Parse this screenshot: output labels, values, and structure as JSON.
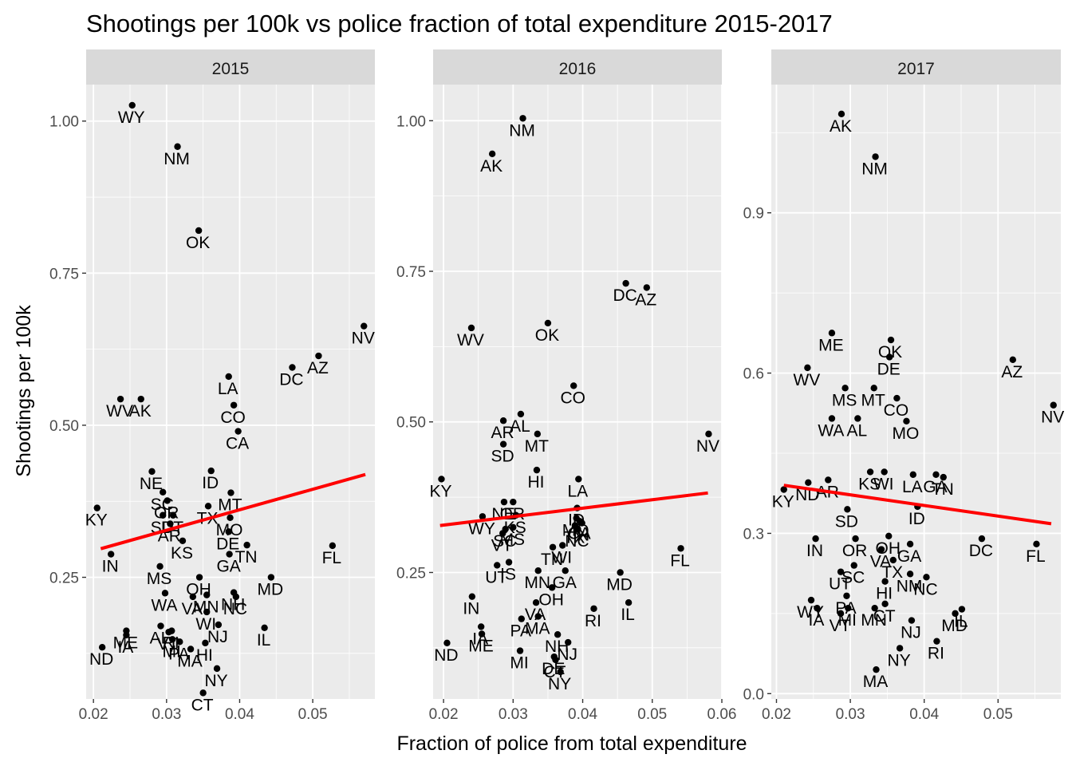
{
  "chart_data": {
    "type": "scatter",
    "title": "Shootings per 100k vs police fraction of total expenditure 2015-2017",
    "xlabel": "Fraction of police from total expenditure",
    "ylabel": "Shootings per 100k",
    "colors": {
      "point": "#000000",
      "trend": "#ff0000",
      "panel": "#ebebeb",
      "strip": "#d9d9d9",
      "grid": "#ffffff"
    },
    "grid": true,
    "facets": [
      {
        "name": "2015",
        "xlim": [
          0.019,
          0.0585
        ],
        "ylim": [
          0.05,
          1.06
        ],
        "xticks": [
          0.02,
          0.03,
          0.04,
          0.05
        ],
        "xtick_labels": [
          "0.02",
          "0.03",
          "0.04",
          "0.05"
        ],
        "yticks": [
          0.25,
          0.5,
          0.75,
          1.0
        ],
        "ytick_labels": [
          "0.25",
          "0.50",
          "0.75",
          "1.00"
        ],
        "trend": [
          [
            0.021,
            0.297
          ],
          [
            0.0572,
            0.419
          ]
        ],
        "points": [
          {
            "state": "WY",
            "x": 0.0253,
            "y": 1.026
          },
          {
            "state": "NM",
            "x": 0.0315,
            "y": 0.958
          },
          {
            "state": "OK",
            "x": 0.0344,
            "y": 0.82
          },
          {
            "state": "NV",
            "x": 0.057,
            "y": 0.663
          },
          {
            "state": "AZ",
            "x": 0.0508,
            "y": 0.614
          },
          {
            "state": "DC",
            "x": 0.0472,
            "y": 0.595
          },
          {
            "state": "LA",
            "x": 0.0385,
            "y": 0.58
          },
          {
            "state": "WV",
            "x": 0.0237,
            "y": 0.543
          },
          {
            "state": "AK",
            "x": 0.0265,
            "y": 0.543
          },
          {
            "state": "CO",
            "x": 0.0392,
            "y": 0.533
          },
          {
            "state": "CA",
            "x": 0.0398,
            "y": 0.49
          },
          {
            "state": "NE",
            "x": 0.028,
            "y": 0.424
          },
          {
            "state": "ID",
            "x": 0.0361,
            "y": 0.425
          },
          {
            "state": "MT",
            "x": 0.0388,
            "y": 0.389
          },
          {
            "state": "SC",
            "x": 0.0295,
            "y": 0.39
          },
          {
            "state": "OR",
            "x": 0.0301,
            "y": 0.376
          },
          {
            "state": "KY",
            "x": 0.0205,
            "y": 0.364
          },
          {
            "state": "TX",
            "x": 0.0357,
            "y": 0.367
          },
          {
            "state": "UT",
            "x": 0.0309,
            "y": 0.352
          },
          {
            "state": "SD",
            "x": 0.0295,
            "y": 0.352
          },
          {
            "state": "MO",
            "x": 0.0387,
            "y": 0.348
          },
          {
            "state": "AR",
            "x": 0.0305,
            "y": 0.338
          },
          {
            "state": "KS",
            "x": 0.0322,
            "y": 0.31
          },
          {
            "state": "DE",
            "x": 0.0385,
            "y": 0.325
          },
          {
            "state": "TN",
            "x": 0.041,
            "y": 0.303
          },
          {
            "state": "FL",
            "x": 0.0527,
            "y": 0.302
          },
          {
            "state": "IN",
            "x": 0.0224,
            "y": 0.288
          },
          {
            "state": "GA",
            "x": 0.0386,
            "y": 0.288
          },
          {
            "state": "MS",
            "x": 0.0291,
            "y": 0.268
          },
          {
            "state": "MD",
            "x": 0.0443,
            "y": 0.25
          },
          {
            "state": "OH",
            "x": 0.0345,
            "y": 0.25
          },
          {
            "state": "WA",
            "x": 0.0298,
            "y": 0.224
          },
          {
            "state": "VA",
            "x": 0.0336,
            "y": 0.218
          },
          {
            "state": "MN",
            "x": 0.0355,
            "y": 0.221
          },
          {
            "state": "NH",
            "x": 0.0392,
            "y": 0.225
          },
          {
            "state": "NC",
            "x": 0.0395,
            "y": 0.218
          },
          {
            "state": "WI",
            "x": 0.0355,
            "y": 0.193
          },
          {
            "state": "NJ",
            "x": 0.0371,
            "y": 0.172
          },
          {
            "state": "IL",
            "x": 0.0434,
            "y": 0.167
          },
          {
            "state": "AL",
            "x": 0.0292,
            "y": 0.17
          },
          {
            "state": "RI",
            "x": 0.0307,
            "y": 0.162
          },
          {
            "state": "VT",
            "x": 0.0303,
            "y": 0.16
          },
          {
            "state": "ME",
            "x": 0.0245,
            "y": 0.162
          },
          {
            "state": "IA",
            "x": 0.0245,
            "y": 0.155
          },
          {
            "state": "MI",
            "x": 0.0308,
            "y": 0.148
          },
          {
            "state": "PA",
            "x": 0.0318,
            "y": 0.144
          },
          {
            "state": "HI",
            "x": 0.0353,
            "y": 0.142
          },
          {
            "state": "MA",
            "x": 0.0333,
            "y": 0.132
          },
          {
            "state": "ND",
            "x": 0.0212,
            "y": 0.135
          },
          {
            "state": "NY",
            "x": 0.0369,
            "y": 0.1
          },
          {
            "state": "CT",
            "x": 0.035,
            "y": 0.06
          }
        ]
      },
      {
        "name": "2016",
        "xlim": [
          0.0185,
          0.06
        ],
        "ylim": [
          0.04,
          1.06
        ],
        "xticks": [
          0.02,
          0.03,
          0.04,
          0.05,
          0.06
        ],
        "xtick_labels": [
          "0.02",
          "0.03",
          "0.04",
          "0.05",
          "0.06"
        ],
        "yticks": [
          0.25,
          0.5,
          0.75,
          1.0
        ],
        "ytick_labels": [
          "0.25",
          "0.50",
          "0.75",
          "1.00"
        ],
        "trend": [
          [
            0.0195,
            0.328
          ],
          [
            0.058,
            0.382
          ]
        ],
        "points": [
          {
            "state": "NM",
            "x": 0.0314,
            "y": 1.004
          },
          {
            "state": "AK",
            "x": 0.027,
            "y": 0.945
          },
          {
            "state": "DC",
            "x": 0.0462,
            "y": 0.73
          },
          {
            "state": "AZ",
            "x": 0.0492,
            "y": 0.723
          },
          {
            "state": "OK",
            "x": 0.035,
            "y": 0.664
          },
          {
            "state": "WV",
            "x": 0.024,
            "y": 0.656
          },
          {
            "state": "CO",
            "x": 0.0387,
            "y": 0.56
          },
          {
            "state": "AL",
            "x": 0.0311,
            "y": 0.513
          },
          {
            "state": "AR",
            "x": 0.0286,
            "y": 0.502
          },
          {
            "state": "MT",
            "x": 0.0335,
            "y": 0.48
          },
          {
            "state": "NV",
            "x": 0.0581,
            "y": 0.48
          },
          {
            "state": "SD",
            "x": 0.0286,
            "y": 0.463
          },
          {
            "state": "HI",
            "x": 0.0334,
            "y": 0.42
          },
          {
            "state": "LA",
            "x": 0.0394,
            "y": 0.405
          },
          {
            "state": "KY",
            "x": 0.0197,
            "y": 0.405
          },
          {
            "state": "NE",
            "x": 0.0287,
            "y": 0.367
          },
          {
            "state": "OR",
            "x": 0.03,
            "y": 0.367
          },
          {
            "state": "ID",
            "x": 0.0392,
            "y": 0.357
          },
          {
            "state": "KS",
            "x": 0.0304,
            "y": 0.345
          },
          {
            "state": "MO",
            "x": 0.0391,
            "y": 0.34
          },
          {
            "state": "WY",
            "x": 0.0256,
            "y": 0.343
          },
          {
            "state": "CA",
            "x": 0.0396,
            "y": 0.335
          },
          {
            "state": "SC",
            "x": 0.0289,
            "y": 0.322
          },
          {
            "state": "TX",
            "x": 0.0389,
            "y": 0.328
          },
          {
            "state": "MS",
            "x": 0.03,
            "y": 0.325
          },
          {
            "state": "VT",
            "x": 0.0285,
            "y": 0.315
          },
          {
            "state": "IN",
            "x": 0.0399,
            "y": 0.332
          },
          {
            "state": "NC",
            "x": 0.0393,
            "y": 0.322
          },
          {
            "state": "TN",
            "x": 0.0357,
            "y": 0.292
          },
          {
            "state": "WI",
            "x": 0.0371,
            "y": 0.295
          },
          {
            "state": "FL",
            "x": 0.0541,
            "y": 0.29
          },
          {
            "state": "UT",
            "x": 0.0277,
            "y": 0.262
          },
          {
            "state": "IS",
            "x": 0.0294,
            "y": 0.267
          },
          {
            "state": "MN",
            "x": 0.0336,
            "y": 0.253
          },
          {
            "state": "MD",
            "x": 0.0454,
            "y": 0.25
          },
          {
            "state": "GA",
            "x": 0.0375,
            "y": 0.253
          },
          {
            "state": "OH",
            "x": 0.0356,
            "y": 0.225
          },
          {
            "state": "IL",
            "x": 0.0466,
            "y": 0.2
          },
          {
            "state": "VA",
            "x": 0.0333,
            "y": 0.2
          },
          {
            "state": "RI",
            "x": 0.0416,
            "y": 0.19
          },
          {
            "state": "IN",
            "x": 0.0241,
            "y": 0.21
          },
          {
            "state": "PA",
            "x": 0.0312,
            "y": 0.173
          },
          {
            "state": "MA",
            "x": 0.0336,
            "y": 0.177
          },
          {
            "state": "IA",
            "x": 0.0254,
            "y": 0.16
          },
          {
            "state": "ME",
            "x": 0.0255,
            "y": 0.148
          },
          {
            "state": "NH",
            "x": 0.0364,
            "y": 0.147
          },
          {
            "state": "NJ",
            "x": 0.0379,
            "y": 0.134
          },
          {
            "state": "ND",
            "x": 0.0205,
            "y": 0.133
          },
          {
            "state": "MI",
            "x": 0.031,
            "y": 0.12
          },
          {
            "state": "DE",
            "x": 0.0359,
            "y": 0.11
          },
          {
            "state": "CT",
            "x": 0.0361,
            "y": 0.105
          },
          {
            "state": "NY",
            "x": 0.0368,
            "y": 0.085
          }
        ]
      },
      {
        "name": "2017",
        "xlim": [
          0.0193,
          0.0585
        ],
        "ylim": [
          -0.01,
          1.14
        ],
        "xticks": [
          0.02,
          0.03,
          0.04,
          0.05
        ],
        "xtick_labels": [
          "0.02",
          "0.03",
          "0.04",
          "0.05"
        ],
        "yticks": [
          0.0,
          0.3,
          0.6,
          0.9
        ],
        "ytick_labels": [
          "0.0",
          "0.3",
          "0.6",
          "0.9"
        ],
        "trend": [
          [
            0.021,
            0.39
          ],
          [
            0.0572,
            0.318
          ]
        ],
        "points": [
          {
            "state": "AK",
            "x": 0.0288,
            "y": 1.085
          },
          {
            "state": "NM",
            "x": 0.0334,
            "y": 1.005
          },
          {
            "state": "ME",
            "x": 0.0275,
            "y": 0.675
          },
          {
            "state": "OK",
            "x": 0.0355,
            "y": 0.662
          },
          {
            "state": "DE",
            "x": 0.0353,
            "y": 0.63
          },
          {
            "state": "AZ",
            "x": 0.052,
            "y": 0.625
          },
          {
            "state": "WV",
            "x": 0.0242,
            "y": 0.61
          },
          {
            "state": "MS",
            "x": 0.0293,
            "y": 0.572
          },
          {
            "state": "MT",
            "x": 0.0332,
            "y": 0.572
          },
          {
            "state": "CO",
            "x": 0.0363,
            "y": 0.553
          },
          {
            "state": "NV",
            "x": 0.0575,
            "y": 0.54
          },
          {
            "state": "WA",
            "x": 0.0275,
            "y": 0.515
          },
          {
            "state": "AL",
            "x": 0.031,
            "y": 0.515
          },
          {
            "state": "MO",
            "x": 0.0376,
            "y": 0.51
          },
          {
            "state": "KS",
            "x": 0.0327,
            "y": 0.415
          },
          {
            "state": "WI",
            "x": 0.0346,
            "y": 0.415
          },
          {
            "state": "LA",
            "x": 0.0385,
            "y": 0.41
          },
          {
            "state": "GA",
            "x": 0.0416,
            "y": 0.41
          },
          {
            "state": "TN",
            "x": 0.0426,
            "y": 0.405
          },
          {
            "state": "AR",
            "x": 0.027,
            "y": 0.4
          },
          {
            "state": "ND",
            "x": 0.0243,
            "y": 0.395
          },
          {
            "state": "KY",
            "x": 0.021,
            "y": 0.382
          },
          {
            "state": "ID",
            "x": 0.0391,
            "y": 0.35
          },
          {
            "state": "SD",
            "x": 0.0296,
            "y": 0.345
          },
          {
            "state": "IN",
            "x": 0.0253,
            "y": 0.29
          },
          {
            "state": "OR",
            "x": 0.0307,
            "y": 0.29
          },
          {
            "state": "DC",
            "x": 0.0478,
            "y": 0.29
          },
          {
            "state": "OH",
            "x": 0.0352,
            "y": 0.295
          },
          {
            "state": "FL",
            "x": 0.0552,
            "y": 0.28
          },
          {
            "state": "GA",
            "x": 0.0381,
            "y": 0.28
          },
          {
            "state": "VA",
            "x": 0.0342,
            "y": 0.27
          },
          {
            "state": "TX",
            "x": 0.0358,
            "y": 0.25
          },
          {
            "state": "UT",
            "x": 0.0287,
            "y": 0.228
          },
          {
            "state": "SC",
            "x": 0.0305,
            "y": 0.24
          },
          {
            "state": "NM",
            "x": 0.0381,
            "y": 0.224
          },
          {
            "state": "NC",
            "x": 0.0403,
            "y": 0.218
          },
          {
            "state": "HI",
            "x": 0.0347,
            "y": 0.21
          },
          {
            "state": "NJ",
            "x": 0.0383,
            "y": 0.137
          },
          {
            "state": "MI",
            "x": 0.0297,
            "y": 0.16
          },
          {
            "state": "PA",
            "x": 0.0295,
            "y": 0.183
          },
          {
            "state": "WY",
            "x": 0.0247,
            "y": 0.175
          },
          {
            "state": "IA",
            "x": 0.0255,
            "y": 0.16
          },
          {
            "state": "VT",
            "x": 0.0287,
            "y": 0.15
          },
          {
            "state": "CT",
            "x": 0.0347,
            "y": 0.168
          },
          {
            "state": "MN",
            "x": 0.0333,
            "y": 0.16
          },
          {
            "state": "MD",
            "x": 0.0442,
            "y": 0.15
          },
          {
            "state": "IL",
            "x": 0.0451,
            "y": 0.158
          },
          {
            "state": "RI",
            "x": 0.0417,
            "y": 0.098
          },
          {
            "state": "NY",
            "x": 0.0367,
            "y": 0.085
          },
          {
            "state": "MA",
            "x": 0.0335,
            "y": 0.045
          }
        ]
      }
    ]
  }
}
